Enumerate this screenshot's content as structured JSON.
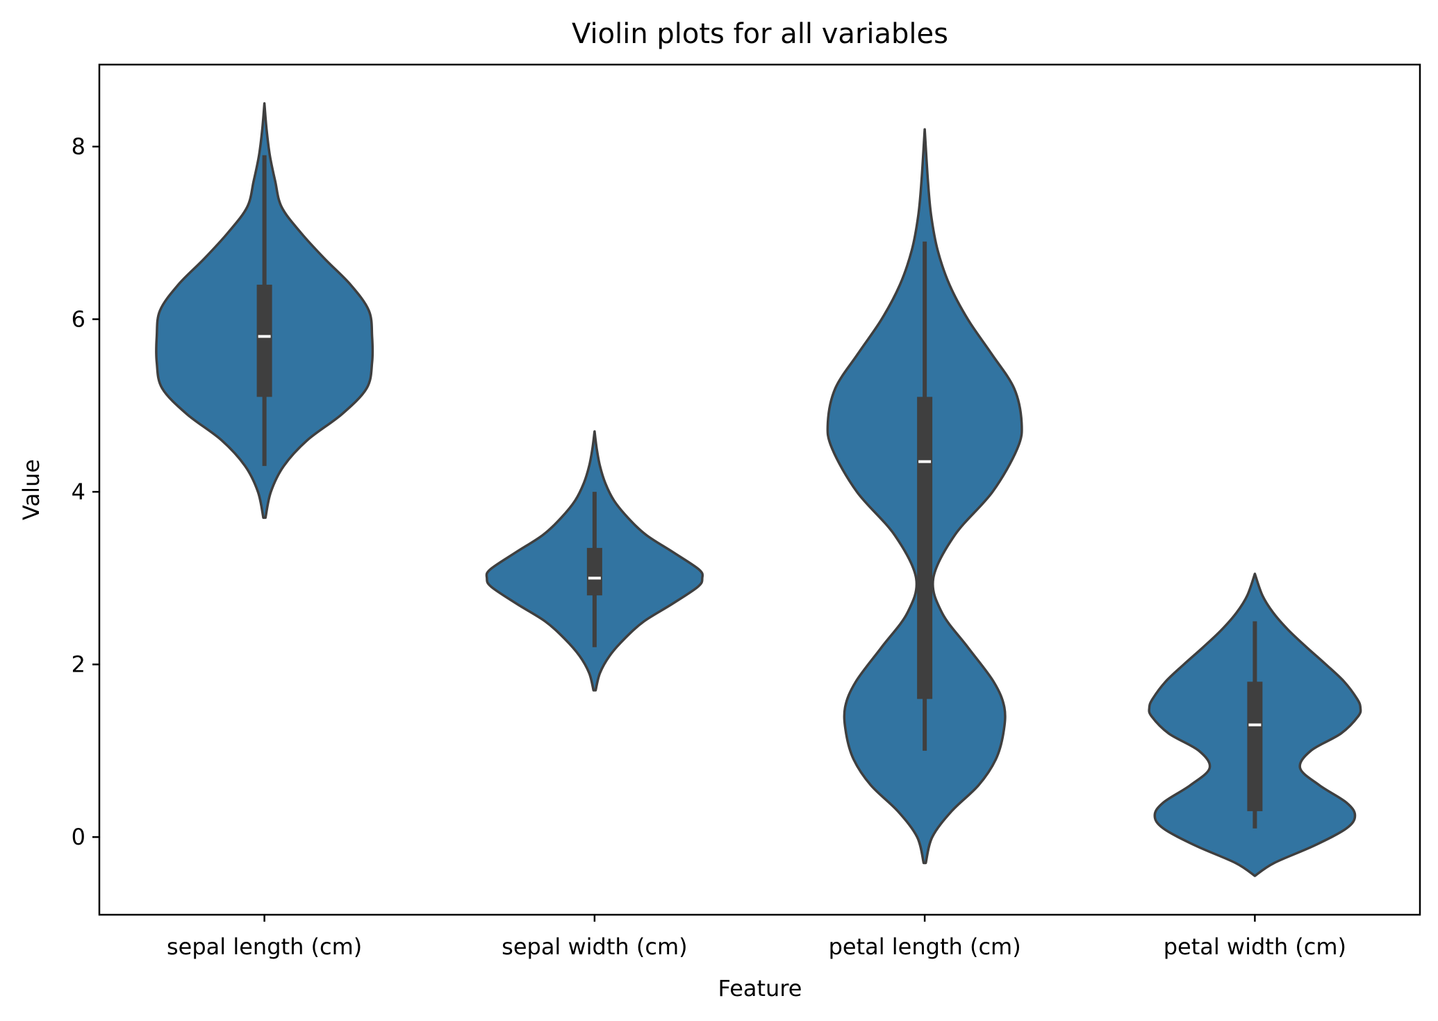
{
  "chart_data": {
    "type": "violin",
    "title": "Violin plots for all variables",
    "xlabel": "Feature",
    "ylabel": "Value",
    "ylim": [
      -0.9,
      8.95
    ],
    "yticks": [
      0,
      2,
      4,
      6,
      8
    ],
    "grid": false,
    "colors": {
      "fill": "#3274a1",
      "edge": "#3f3f3f",
      "box": "#3f3f3f",
      "median": "#ffffff"
    },
    "categories": [
      "sepal length (cm)",
      "sepal width (cm)",
      "petal length (cm)",
      "petal width (cm)"
    ],
    "violins": [
      {
        "category": "sepal length (cm)",
        "min": 4.3,
        "q1": 5.1,
        "median": 5.8,
        "q3": 6.4,
        "max": 7.9,
        "kde_range": [
          3.7,
          8.5
        ],
        "density_y": [
          3.7,
          4.0,
          4.3,
          4.6,
          4.9,
          5.2,
          5.5,
          5.8,
          6.1,
          6.4,
          6.7,
          7.0,
          7.3,
          7.6,
          7.9,
          8.2,
          8.5
        ],
        "density_w": [
          0.01,
          0.06,
          0.18,
          0.4,
          0.72,
          0.95,
          1.0,
          1.0,
          0.97,
          0.8,
          0.56,
          0.34,
          0.16,
          0.1,
          0.05,
          0.02,
          0.0
        ]
      },
      {
        "category": "sepal width (cm)",
        "min": 2.2,
        "q1": 2.8,
        "median": 3.0,
        "q3": 3.35,
        "max": 4.0,
        "kde_range": [
          1.7,
          4.7
        ],
        "density_y": [
          1.7,
          1.9,
          2.1,
          2.3,
          2.5,
          2.7,
          2.9,
          3.0,
          3.1,
          3.3,
          3.5,
          3.7,
          3.9,
          4.1,
          4.3,
          4.5,
          4.7
        ],
        "density_w": [
          0.01,
          0.05,
          0.14,
          0.28,
          0.46,
          0.72,
          0.96,
          1.0,
          0.97,
          0.73,
          0.48,
          0.31,
          0.18,
          0.1,
          0.05,
          0.02,
          0.0
        ]
      },
      {
        "category": "petal length (cm)",
        "min": 1.0,
        "q1": 1.6,
        "median": 4.35,
        "q3": 5.1,
        "max": 6.9,
        "kde_range": [
          -0.3,
          8.2
        ],
        "density_y": [
          -0.3,
          0.0,
          0.3,
          0.6,
          0.9,
          1.2,
          1.5,
          1.8,
          2.2,
          2.6,
          3.0,
          3.5,
          4.0,
          4.5,
          4.8,
          5.2,
          5.6,
          6.0,
          6.4,
          6.8,
          7.2,
          7.6,
          8.2
        ],
        "density_w": [
          0.01,
          0.07,
          0.25,
          0.5,
          0.66,
          0.73,
          0.74,
          0.64,
          0.4,
          0.16,
          0.08,
          0.28,
          0.63,
          0.86,
          0.9,
          0.83,
          0.62,
          0.4,
          0.23,
          0.12,
          0.06,
          0.03,
          0.0
        ]
      },
      {
        "category": "petal width (cm)",
        "min": 0.1,
        "q1": 0.3,
        "median": 1.3,
        "q3": 1.8,
        "max": 2.5,
        "kde_range": [
          -0.45,
          3.05
        ],
        "density_y": [
          -0.45,
          -0.3,
          -0.1,
          0.1,
          0.25,
          0.4,
          0.6,
          0.8,
          1.0,
          1.2,
          1.4,
          1.5,
          1.6,
          1.8,
          2.0,
          2.2,
          2.4,
          2.6,
          2.8,
          3.05
        ],
        "density_w": [
          0.0,
          0.18,
          0.55,
          0.85,
          0.93,
          0.85,
          0.6,
          0.42,
          0.52,
          0.8,
          0.96,
          0.98,
          0.95,
          0.83,
          0.66,
          0.48,
          0.31,
          0.17,
          0.07,
          0.0
        ]
      }
    ]
  }
}
